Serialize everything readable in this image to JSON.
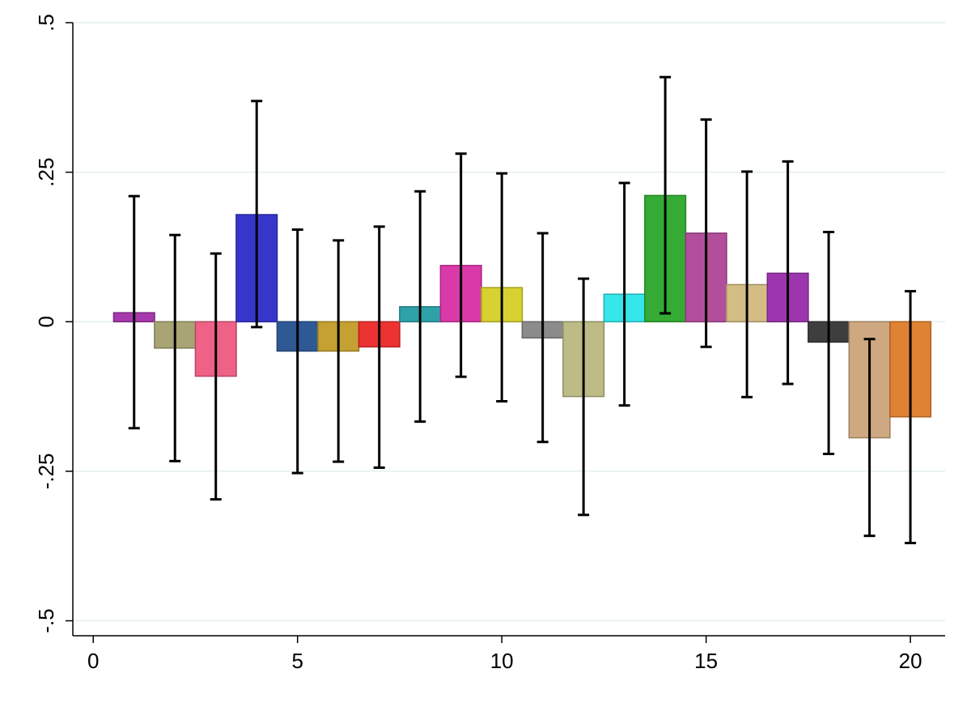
{
  "chart_data": {
    "type": "bar",
    "title": "",
    "xlabel": "",
    "ylabel": "",
    "xlim": [
      -0.5,
      20.85
    ],
    "ylim": [
      -0.525,
      0.5
    ],
    "grid": true,
    "x_ticks": [
      {
        "value": 0,
        "label": "0"
      },
      {
        "value": 5,
        "label": "5"
      },
      {
        "value": 10,
        "label": "10"
      },
      {
        "value": 15,
        "label": "15"
      },
      {
        "value": 20,
        "label": "20"
      }
    ],
    "y_ticks": [
      {
        "value": 0.5,
        "label": ".5"
      },
      {
        "value": 0.25,
        "label": ".25"
      },
      {
        "value": 0,
        "label": "0"
      },
      {
        "value": -0.25,
        "label": "-.25"
      },
      {
        "value": -0.5,
        "label": "-.5"
      }
    ],
    "bars": [
      {
        "x": 1,
        "value": 0.015,
        "ci_low": -0.178,
        "ci_high": 0.21,
        "color": "#a63aac"
      },
      {
        "x": 2,
        "value": -0.044,
        "ci_low": -0.233,
        "ci_high": 0.145,
        "color": "#a8a474"
      },
      {
        "x": 3,
        "value": -0.091,
        "ci_low": -0.297,
        "ci_high": 0.114,
        "color": "#ef6186"
      },
      {
        "x": 4,
        "value": 0.179,
        "ci_low": -0.009,
        "ci_high": 0.369,
        "color": "#3636cb"
      },
      {
        "x": 5,
        "value": -0.049,
        "ci_low": -0.253,
        "ci_high": 0.154,
        "color": "#2f5995"
      },
      {
        "x": 6,
        "value": -0.049,
        "ci_low": -0.234,
        "ci_high": 0.136,
        "color": "#c5a032"
      },
      {
        "x": 7,
        "value": -0.042,
        "ci_low": -0.244,
        "ci_high": 0.159,
        "color": "#ec3332"
      },
      {
        "x": 8,
        "value": 0.025,
        "ci_low": -0.167,
        "ci_high": 0.218,
        "color": "#2fa2a9"
      },
      {
        "x": 9,
        "value": 0.094,
        "ci_low": -0.092,
        "ci_high": 0.281,
        "color": "#da3aa9"
      },
      {
        "x": 10,
        "value": 0.057,
        "ci_low": -0.133,
        "ci_high": 0.248,
        "color": "#d7d132"
      },
      {
        "x": 11,
        "value": -0.027,
        "ci_low": -0.201,
        "ci_high": 0.148,
        "color": "#8b8b8b"
      },
      {
        "x": 12,
        "value": -0.125,
        "ci_low": -0.323,
        "ci_high": 0.072,
        "color": "#bdbb86"
      },
      {
        "x": 13,
        "value": 0.046,
        "ci_low": -0.14,
        "ci_high": 0.232,
        "color": "#35e6ea"
      },
      {
        "x": 14,
        "value": 0.211,
        "ci_low": 0.014,
        "ci_high": 0.409,
        "color": "#35ab35"
      },
      {
        "x": 15,
        "value": 0.148,
        "ci_low": -0.042,
        "ci_high": 0.338,
        "color": "#b24e9c"
      },
      {
        "x": 16,
        "value": 0.062,
        "ci_low": -0.126,
        "ci_high": 0.251,
        "color": "#d4bd85"
      },
      {
        "x": 17,
        "value": 0.081,
        "ci_low": -0.104,
        "ci_high": 0.268,
        "color": "#9d36ae"
      },
      {
        "x": 18,
        "value": -0.034,
        "ci_low": -0.221,
        "ci_high": 0.15,
        "color": "#3e3e3e"
      },
      {
        "x": 19,
        "value": -0.194,
        "ci_low": -0.358,
        "ci_high": -0.029,
        "color": "#cea880"
      },
      {
        "x": 20,
        "value": -0.159,
        "ci_low": -0.37,
        "ci_high": 0.051,
        "color": "#e08233"
      }
    ]
  }
}
